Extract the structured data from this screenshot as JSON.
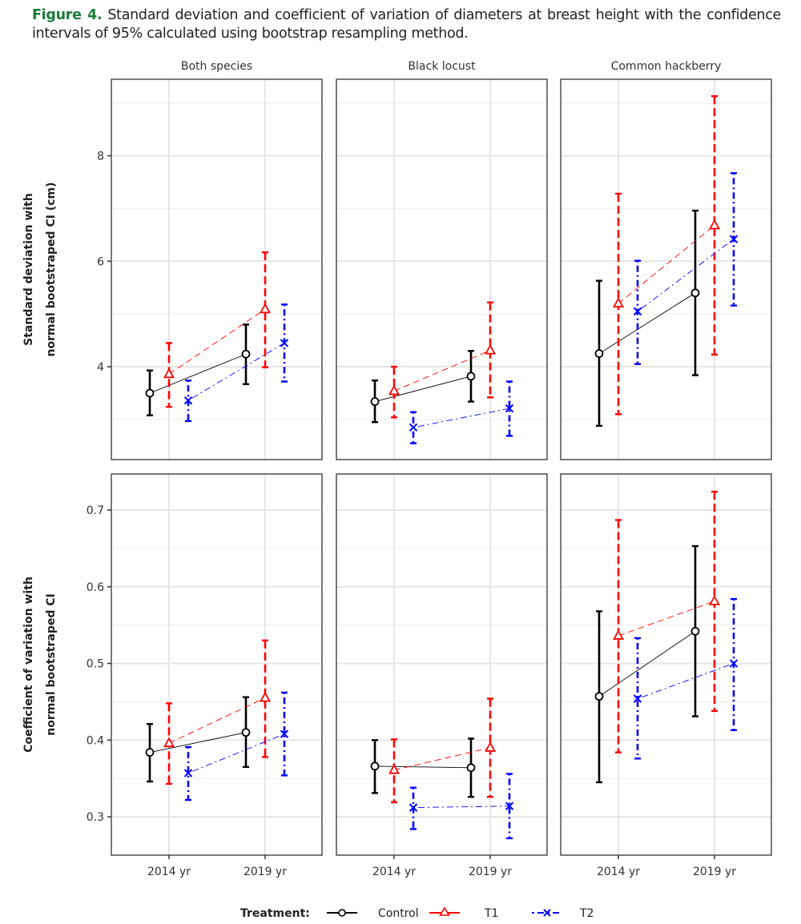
{
  "caption": {
    "label": "Figure 4.",
    "text": " Standard deviation and coefficient of variation of diameters at breast height with the confidence intervals of 95% calculated using bootstrap resampling method."
  },
  "chart_data": {
    "type": "line",
    "description": "Faceted point-and-errorbar plot with connecting lines (2 rows x 3 columns)",
    "facets": [
      "Both species",
      "Black locust",
      "Common hackberry"
    ],
    "x_categories": [
      "2014 yr",
      "2019 yr"
    ],
    "legend": {
      "title": "Treatment:",
      "position": "bottom",
      "entries": [
        {
          "name": "Control",
          "color": "#000000",
          "marker": "circle",
          "linestyle": "solid"
        },
        {
          "name": "T1",
          "color": "#ff0000",
          "marker": "triangle",
          "linestyle": "dashed"
        },
        {
          "name": "T2",
          "color": "#0000ff",
          "marker": "x",
          "linestyle": "dotdash"
        }
      ]
    },
    "rows": [
      {
        "ylabel": [
          "Standard deviation with",
          "normal bootstraped CI (cm)"
        ],
        "ylim": [
          2.24,
          9.45
        ],
        "yticks": [
          4,
          6,
          8
        ],
        "minor_gridlines": [
          3,
          5,
          7,
          9
        ],
        "panels": [
          {
            "facet": "Both species",
            "series": [
              {
                "name": "Control",
                "values": [
                  3.5,
                  4.24
                ],
                "lower": [
                  3.08,
                  3.67
                ],
                "upper": [
                  3.93,
                  4.8
                ]
              },
              {
                "name": "T1",
                "values": [
                  3.86,
                  5.09
                ],
                "lower": [
                  3.24,
                  3.99
                ],
                "upper": [
                  4.45,
                  6.17
                ]
              },
              {
                "name": "T2",
                "values": [
                  3.36,
                  4.45
                ],
                "lower": [
                  2.97,
                  3.72
                ],
                "upper": [
                  3.74,
                  5.18
                ]
              }
            ]
          },
          {
            "facet": "Black locust",
            "series": [
              {
                "name": "Control",
                "values": [
                  3.34,
                  3.82
                ],
                "lower": [
                  2.95,
                  3.34
                ],
                "upper": [
                  3.74,
                  4.3
                ]
              },
              {
                "name": "T1",
                "values": [
                  3.54,
                  4.31
                ],
                "lower": [
                  3.04,
                  3.42
                ],
                "upper": [
                  4.0,
                  5.22
                ]
              },
              {
                "name": "T2",
                "values": [
                  2.85,
                  3.21
                ],
                "lower": [
                  2.55,
                  2.69
                ],
                "upper": [
                  3.14,
                  3.72
                ]
              }
            ]
          },
          {
            "facet": "Common hackberry",
            "series": [
              {
                "name": "Control",
                "values": [
                  4.25,
                  5.4
                ],
                "lower": [
                  2.88,
                  3.84
                ],
                "upper": [
                  5.63,
                  6.96
                ]
              },
              {
                "name": "T1",
                "values": [
                  5.2,
                  6.68
                ],
                "lower": [
                  3.1,
                  4.23
                ],
                "upper": [
                  7.28,
                  9.13
                ]
              },
              {
                "name": "T2",
                "values": [
                  5.05,
                  6.42
                ],
                "lower": [
                  4.05,
                  5.16
                ],
                "upper": [
                  6.01,
                  7.67
                ]
              }
            ]
          }
        ]
      },
      {
        "ylabel": [
          "Coefficient of variation with",
          "normal bootstraped CI"
        ],
        "ylim": [
          0.25,
          0.747
        ],
        "yticks": [
          0.3,
          0.4,
          0.5,
          0.6,
          0.7
        ],
        "minor_gridlines": [
          0.35,
          0.45,
          0.55,
          0.65
        ],
        "panels": [
          {
            "facet": "Both species",
            "series": [
              {
                "name": "Control",
                "values": [
                  0.384,
                  0.41
                ],
                "lower": [
                  0.346,
                  0.365
                ],
                "upper": [
                  0.421,
                  0.456
                ]
              },
              {
                "name": "T1",
                "values": [
                  0.396,
                  0.455
                ],
                "lower": [
                  0.343,
                  0.378
                ],
                "upper": [
                  0.448,
                  0.53
                ]
              },
              {
                "name": "T2",
                "values": [
                  0.357,
                  0.408
                ],
                "lower": [
                  0.322,
                  0.354
                ],
                "upper": [
                  0.391,
                  0.462
                ]
              }
            ]
          },
          {
            "facet": "Black locust",
            "series": [
              {
                "name": "Control",
                "values": [
                  0.366,
                  0.364
                ],
                "lower": [
                  0.331,
                  0.326
                ],
                "upper": [
                  0.4,
                  0.402
                ]
              },
              {
                "name": "T1",
                "values": [
                  0.361,
                  0.39
                ],
                "lower": [
                  0.319,
                  0.326
                ],
                "upper": [
                  0.401,
                  0.454
                ]
              },
              {
                "name": "T2",
                "values": [
                  0.312,
                  0.314
                ],
                "lower": [
                  0.284,
                  0.272
                ],
                "upper": [
                  0.338,
                  0.356
                ]
              }
            ]
          },
          {
            "facet": "Common hackberry",
            "series": [
              {
                "name": "Control",
                "values": [
                  0.457,
                  0.542
                ],
                "lower": [
                  0.345,
                  0.431
                ],
                "upper": [
                  0.568,
                  0.653
                ]
              },
              {
                "name": "T1",
                "values": [
                  0.536,
                  0.581
                ],
                "lower": [
                  0.384,
                  0.438
                ],
                "upper": [
                  0.687,
                  0.724
                ]
              },
              {
                "name": "T2",
                "values": [
                  0.454,
                  0.5
                ],
                "lower": [
                  0.376,
                  0.413
                ],
                "upper": [
                  0.533,
                  0.584
                ]
              }
            ]
          }
        ]
      }
    ]
  }
}
